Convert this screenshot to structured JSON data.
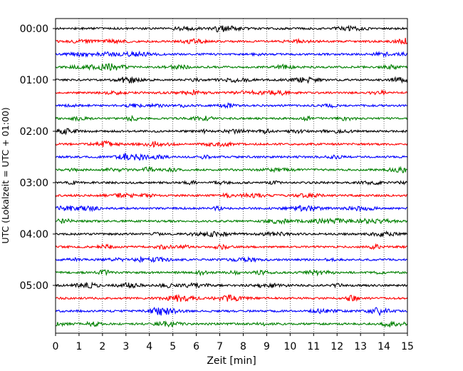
{
  "chart_data": {
    "type": "line",
    "title": "",
    "xlabel": "Zeit  [min]",
    "ylabel": "UTC (Lokalzeit = UTC + 01:00)",
    "xlim": [
      0,
      15
    ],
    "x_ticks": [
      "0",
      "1",
      "2",
      "3",
      "4",
      "5",
      "6",
      "7",
      "8",
      "9",
      "10",
      "11",
      "12",
      "13",
      "14",
      "15"
    ],
    "y_ticks": [
      "00:00",
      "01:00",
      "02:00",
      "03:00",
      "04:00",
      "05:00"
    ],
    "grid": "vertical dotted lines at each minute",
    "trace_colors": [
      "#000000",
      "#ff0000",
      "#0000ff",
      "#008000"
    ],
    "series": [
      {
        "start": "00:00"
      },
      {
        "start": "00:15"
      },
      {
        "start": "00:30"
      },
      {
        "start": "00:45"
      },
      {
        "start": "01:00"
      },
      {
        "start": "01:15"
      },
      {
        "start": "01:30"
      },
      {
        "start": "01:45"
      },
      {
        "start": "02:00"
      },
      {
        "start": "02:15"
      },
      {
        "start": "02:30"
      },
      {
        "start": "02:45"
      },
      {
        "start": "03:00"
      },
      {
        "start": "03:15"
      },
      {
        "start": "03:30"
      },
      {
        "start": "03:45"
      },
      {
        "start": "04:00"
      },
      {
        "start": "04:15"
      },
      {
        "start": "04:30"
      },
      {
        "start": "04:45"
      },
      {
        "start": "05:00"
      },
      {
        "start": "05:15"
      },
      {
        "start": "05:30"
      },
      {
        "start": "05:45"
      }
    ]
  }
}
